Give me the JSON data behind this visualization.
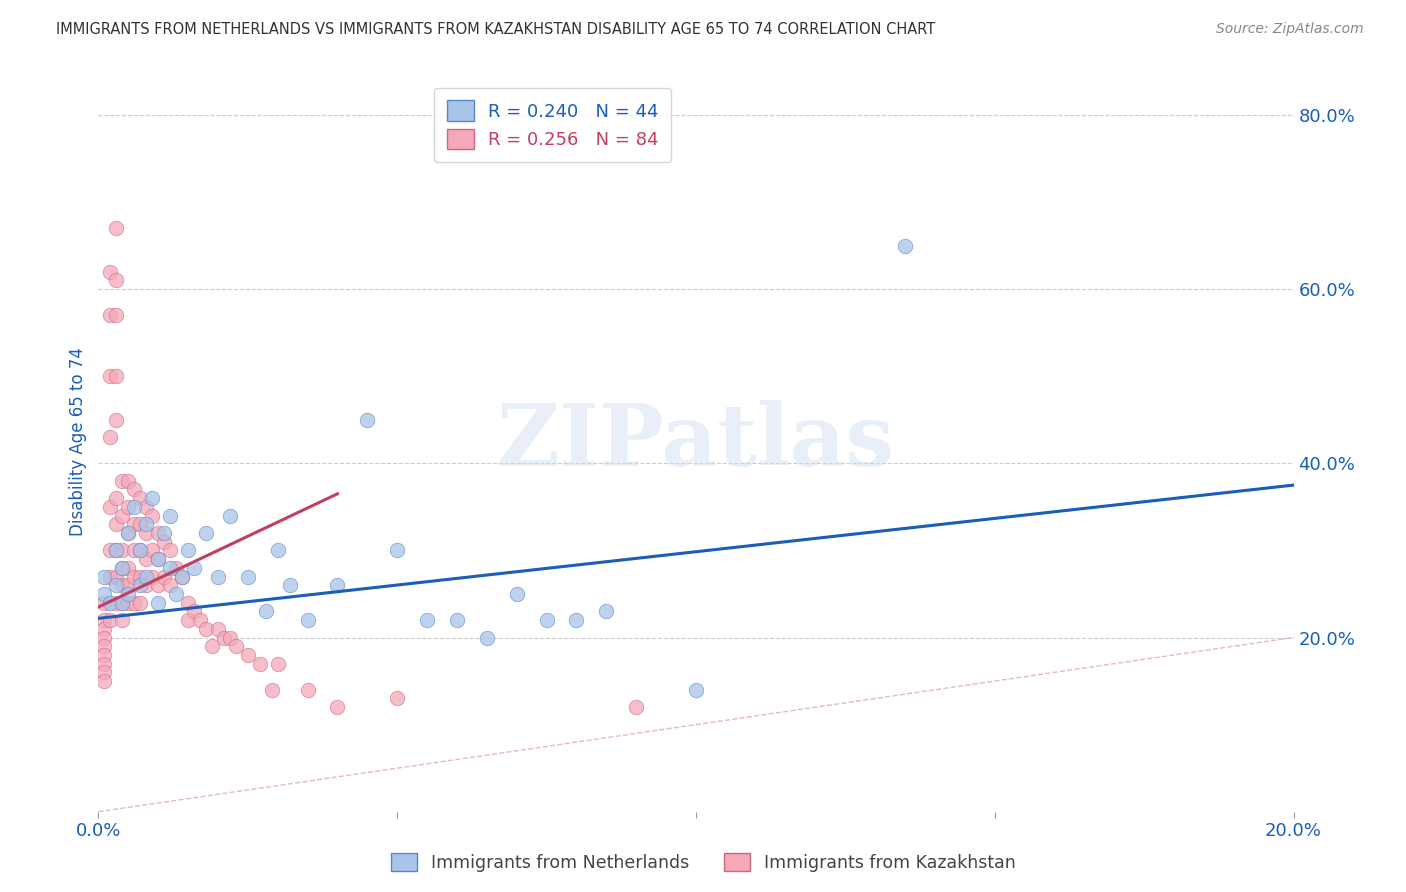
{
  "title": "IMMIGRANTS FROM NETHERLANDS VS IMMIGRANTS FROM KAZAKHSTAN DISABILITY AGE 65 TO 74 CORRELATION CHART",
  "source": "Source: ZipAtlas.com",
  "ylabel": "Disability Age 65 to 74",
  "xlim": [
    0.0,
    0.2
  ],
  "ylim": [
    0.0,
    0.85
  ],
  "xticks": [
    0.0,
    0.05,
    0.1,
    0.15,
    0.2
  ],
  "xticklabels": [
    "0.0%",
    "",
    "",
    "",
    "20.0%"
  ],
  "yticks_right": [
    0.2,
    0.4,
    0.6,
    0.8
  ],
  "ytick_labels_right": [
    "20.0%",
    "40.0%",
    "60.0%",
    "80.0%"
  ],
  "legend_blue_r": "R = 0.240",
  "legend_blue_n": "N = 44",
  "legend_pink_r": "R = 0.256",
  "legend_pink_n": "N = 84",
  "blue_color": "#a8c4e8",
  "pink_color": "#f4a8b8",
  "blue_edge_color": "#5588cc",
  "pink_edge_color": "#cc6688",
  "blue_line_color": "#1a5eb8",
  "pink_line_color": "#c04060",
  "watermark_text": "ZIPatlas",
  "blue_dots_x": [
    0.001,
    0.001,
    0.002,
    0.003,
    0.003,
    0.004,
    0.004,
    0.005,
    0.005,
    0.006,
    0.007,
    0.007,
    0.008,
    0.008,
    0.009,
    0.01,
    0.01,
    0.011,
    0.012,
    0.012,
    0.013,
    0.014,
    0.015,
    0.016,
    0.018,
    0.02,
    0.022,
    0.025,
    0.028,
    0.03,
    0.032,
    0.035,
    0.04,
    0.045,
    0.05,
    0.055,
    0.06,
    0.065,
    0.07,
    0.075,
    0.08,
    0.085,
    0.1,
    0.135
  ],
  "blue_dots_y": [
    0.27,
    0.25,
    0.24,
    0.3,
    0.26,
    0.28,
    0.24,
    0.32,
    0.25,
    0.35,
    0.3,
    0.26,
    0.33,
    0.27,
    0.36,
    0.24,
    0.29,
    0.32,
    0.28,
    0.34,
    0.25,
    0.27,
    0.3,
    0.28,
    0.32,
    0.27,
    0.34,
    0.27,
    0.23,
    0.3,
    0.26,
    0.22,
    0.26,
    0.45,
    0.3,
    0.22,
    0.22,
    0.2,
    0.25,
    0.22,
    0.22,
    0.23,
    0.14,
    0.65
  ],
  "pink_dots_x": [
    0.001,
    0.001,
    0.001,
    0.001,
    0.001,
    0.001,
    0.001,
    0.001,
    0.001,
    0.002,
    0.002,
    0.002,
    0.002,
    0.002,
    0.002,
    0.002,
    0.002,
    0.003,
    0.003,
    0.003,
    0.003,
    0.003,
    0.003,
    0.003,
    0.003,
    0.003,
    0.003,
    0.004,
    0.004,
    0.004,
    0.004,
    0.004,
    0.004,
    0.004,
    0.005,
    0.005,
    0.005,
    0.005,
    0.005,
    0.005,
    0.006,
    0.006,
    0.006,
    0.006,
    0.006,
    0.007,
    0.007,
    0.007,
    0.007,
    0.007,
    0.008,
    0.008,
    0.008,
    0.008,
    0.009,
    0.009,
    0.009,
    0.01,
    0.01,
    0.01,
    0.011,
    0.011,
    0.012,
    0.012,
    0.013,
    0.014,
    0.015,
    0.015,
    0.016,
    0.017,
    0.018,
    0.019,
    0.02,
    0.021,
    0.022,
    0.023,
    0.025,
    0.027,
    0.029,
    0.03,
    0.035,
    0.04,
    0.05,
    0.09
  ],
  "pink_dots_y": [
    0.24,
    0.22,
    0.21,
    0.2,
    0.19,
    0.18,
    0.17,
    0.16,
    0.15,
    0.62,
    0.57,
    0.5,
    0.43,
    0.35,
    0.3,
    0.27,
    0.22,
    0.67,
    0.61,
    0.57,
    0.5,
    0.45,
    0.36,
    0.33,
    0.3,
    0.27,
    0.24,
    0.38,
    0.34,
    0.3,
    0.28,
    0.26,
    0.24,
    0.22,
    0.38,
    0.35,
    0.32,
    0.28,
    0.26,
    0.24,
    0.37,
    0.33,
    0.3,
    0.27,
    0.24,
    0.36,
    0.33,
    0.3,
    0.27,
    0.24,
    0.35,
    0.32,
    0.29,
    0.26,
    0.34,
    0.3,
    0.27,
    0.32,
    0.29,
    0.26,
    0.31,
    0.27,
    0.3,
    0.26,
    0.28,
    0.27,
    0.24,
    0.22,
    0.23,
    0.22,
    0.21,
    0.19,
    0.21,
    0.2,
    0.2,
    0.19,
    0.18,
    0.17,
    0.14,
    0.17,
    0.14,
    0.12,
    0.13,
    0.12
  ],
  "blue_trend_x": [
    0.0,
    0.2
  ],
  "blue_trend_y": [
    0.222,
    0.375
  ],
  "pink_trend_x": [
    0.0,
    0.04
  ],
  "pink_trend_y": [
    0.235,
    0.365
  ],
  "ref_line_x": [
    0.0,
    0.85
  ],
  "ref_line_y": [
    0.0,
    0.85
  ],
  "background_color": "#ffffff",
  "grid_color": "#cccccc",
  "title_color": "#333333",
  "tick_label_color": "#1a5eb8",
  "legend_text_blue": "#1a5eb8",
  "legend_text_pink": "#c04060"
}
